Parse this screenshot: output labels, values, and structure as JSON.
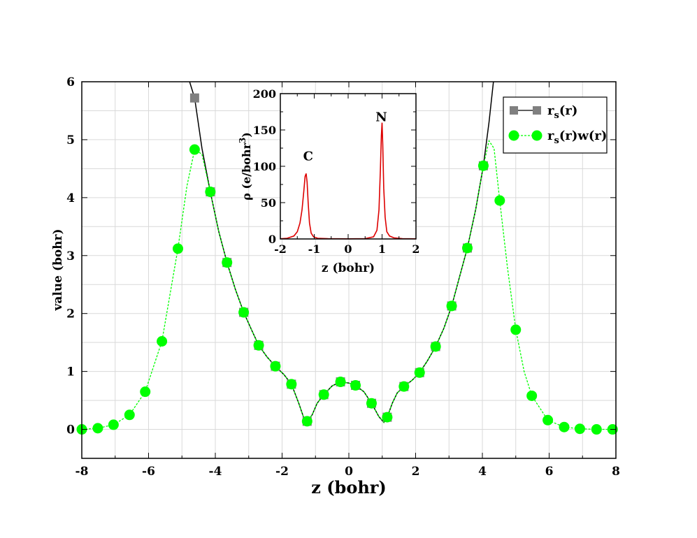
{
  "chart_data": [
    {
      "type": "line",
      "xlabel": "z (bohr)",
      "ylabel": "value (bohr)",
      "xlim": [
        -8,
        8
      ],
      "ylim": [
        -0.5,
        6
      ],
      "x_ticks": [
        -8,
        -6,
        -4,
        -2,
        0,
        2,
        4,
        6,
        8
      ],
      "y_ticks": [
        0,
        1,
        2,
        3,
        4,
        5,
        6
      ],
      "grid": true,
      "legend_position": "top-right",
      "series": [
        {
          "name": "r_s(r)",
          "legend_main": "r",
          "legend_sub": "s",
          "legend_rest": "(r)",
          "color": "#000000",
          "marker": "square",
          "marker_color": "#808080",
          "line_style": "solid",
          "x": [
            -4.62,
            -4.15,
            -3.65,
            -3.15,
            -2.7,
            -2.2,
            -1.72,
            -1.25,
            -0.75,
            -0.25,
            0.2,
            0.68,
            1.15,
            1.65,
            2.12,
            2.6,
            3.08,
            3.55,
            4.03
          ],
          "y": [
            5.72,
            4.1,
            2.88,
            2.02,
            1.45,
            1.09,
            0.78,
            0.14,
            0.6,
            0.82,
            0.76,
            0.45,
            0.21,
            0.74,
            0.98,
            1.43,
            2.13,
            3.13,
            4.55
          ],
          "curve_x": [
            -4.77,
            -4.62,
            -4.4,
            -4.15,
            -3.9,
            -3.65,
            -3.4,
            -3.15,
            -2.9,
            -2.7,
            -2.45,
            -2.2,
            -1.95,
            -1.72,
            -1.5,
            -1.35,
            -1.25,
            -1.1,
            -0.95,
            -0.75,
            -0.5,
            -0.25,
            0.0,
            0.2,
            0.45,
            0.68,
            0.9,
            1.05,
            1.15,
            1.3,
            1.45,
            1.65,
            1.9,
            2.12,
            2.35,
            2.6,
            2.85,
            3.08,
            3.3,
            3.55,
            3.8,
            4.03,
            4.2,
            4.33
          ],
          "curve_y": [
            6.0,
            5.72,
            4.85,
            4.1,
            3.42,
            2.88,
            2.42,
            2.02,
            1.7,
            1.45,
            1.25,
            1.09,
            0.95,
            0.78,
            0.45,
            0.2,
            0.14,
            0.25,
            0.45,
            0.6,
            0.75,
            0.82,
            0.8,
            0.76,
            0.65,
            0.45,
            0.22,
            0.12,
            0.21,
            0.45,
            0.63,
            0.74,
            0.85,
            0.98,
            1.18,
            1.43,
            1.75,
            2.13,
            2.6,
            3.13,
            3.8,
            4.55,
            5.3,
            6.0
          ]
        },
        {
          "name": "r_s(r)w(r)",
          "legend_main": "r",
          "legend_sub": "s",
          "legend_rest": "(r)w(r)",
          "color": "#00ff00",
          "marker": "circle",
          "marker_color": "#00ff00",
          "line_style": "dashed",
          "x": [
            -8.0,
            -7.52,
            -7.05,
            -6.57,
            -6.1,
            -5.6,
            -5.12,
            -4.62,
            -4.15,
            -3.65,
            -3.15,
            -2.7,
            -2.2,
            -1.72,
            -1.25,
            -0.75,
            -0.25,
            0.2,
            0.68,
            1.15,
            1.65,
            2.12,
            2.6,
            3.08,
            3.55,
            4.03,
            4.52,
            5.0,
            5.48,
            5.96,
            6.45,
            6.92,
            7.42,
            7.9
          ],
          "y": [
            0.0,
            0.02,
            0.08,
            0.25,
            0.65,
            1.52,
            3.12,
            4.83,
            4.1,
            2.88,
            2.02,
            1.45,
            1.09,
            0.78,
            0.14,
            0.6,
            0.82,
            0.76,
            0.45,
            0.21,
            0.74,
            0.98,
            1.43,
            2.13,
            3.13,
            4.55,
            3.95,
            1.72,
            0.58,
            0.16,
            0.04,
            0.01,
            0.0,
            0.0
          ],
          "curve_x": [
            -8.0,
            -7.52,
            -7.05,
            -6.57,
            -6.1,
            -5.6,
            -5.12,
            -4.85,
            -4.62,
            -4.4,
            -4.15,
            -3.9,
            -3.65,
            -3.4,
            -3.15,
            -2.9,
            -2.7,
            -2.45,
            -2.2,
            -1.95,
            -1.72,
            -1.5,
            -1.35,
            -1.25,
            -1.1,
            -0.95,
            -0.75,
            -0.5,
            -0.25,
            0.0,
            0.2,
            0.45,
            0.68,
            0.9,
            1.05,
            1.15,
            1.3,
            1.45,
            1.65,
            1.9,
            2.12,
            2.35,
            2.6,
            2.85,
            3.08,
            3.3,
            3.55,
            3.8,
            4.03,
            4.2,
            4.35,
            4.52,
            4.75,
            5.0,
            5.25,
            5.48,
            5.96,
            6.45,
            6.92,
            7.42,
            7.9
          ],
          "curve_y": [
            0.0,
            0.02,
            0.08,
            0.25,
            0.65,
            1.52,
            3.12,
            4.2,
            4.83,
            4.75,
            4.1,
            3.42,
            2.88,
            2.42,
            2.02,
            1.7,
            1.45,
            1.25,
            1.09,
            0.95,
            0.78,
            0.45,
            0.2,
            0.14,
            0.25,
            0.45,
            0.6,
            0.75,
            0.82,
            0.8,
            0.76,
            0.65,
            0.45,
            0.22,
            0.12,
            0.21,
            0.45,
            0.63,
            0.74,
            0.85,
            0.98,
            1.18,
            1.43,
            1.75,
            2.13,
            2.6,
            3.13,
            3.8,
            4.55,
            4.98,
            4.85,
            3.95,
            2.8,
            1.72,
            1.0,
            0.58,
            0.16,
            0.04,
            0.01,
            0.0,
            0.0
          ]
        }
      ]
    },
    {
      "type": "line",
      "inset": true,
      "xlabel": "z (bohr)",
      "ylabel_main": "ρ (e/bohr",
      "ylabel_sup": "3",
      "ylabel_end": ")",
      "xlim": [
        -2,
        2
      ],
      "ylim": [
        0,
        200
      ],
      "x_ticks": [
        -2,
        -1,
        0,
        1,
        2
      ],
      "y_ticks": [
        0,
        50,
        100,
        150,
        200
      ],
      "grid": false,
      "annotations": [
        {
          "text": "C",
          "x": -1.18,
          "y": 108
        },
        {
          "text": "N",
          "x": 0.98,
          "y": 162
        }
      ],
      "series": [
        {
          "color": "#dd0000",
          "x": [
            -2.0,
            -1.8,
            -1.6,
            -1.5,
            -1.42,
            -1.36,
            -1.31,
            -1.27,
            -1.24,
            -1.21,
            -1.18,
            -1.14,
            -1.09,
            -1.02,
            -0.9,
            -0.6,
            0.0,
            0.5,
            0.75,
            0.85,
            0.91,
            0.95,
            0.98,
            1.0,
            1.02,
            1.05,
            1.09,
            1.14,
            1.22,
            1.35,
            1.6,
            2.0
          ],
          "y": [
            0.3,
            1,
            4,
            10,
            22,
            40,
            65,
            86,
            90,
            78,
            50,
            22,
            8,
            3,
            1,
            0.4,
            0.2,
            0.5,
            3,
            12,
            40,
            95,
            142,
            160,
            130,
            70,
            30,
            10,
            4,
            1.5,
            0.5,
            0.2
          ]
        }
      ]
    }
  ]
}
